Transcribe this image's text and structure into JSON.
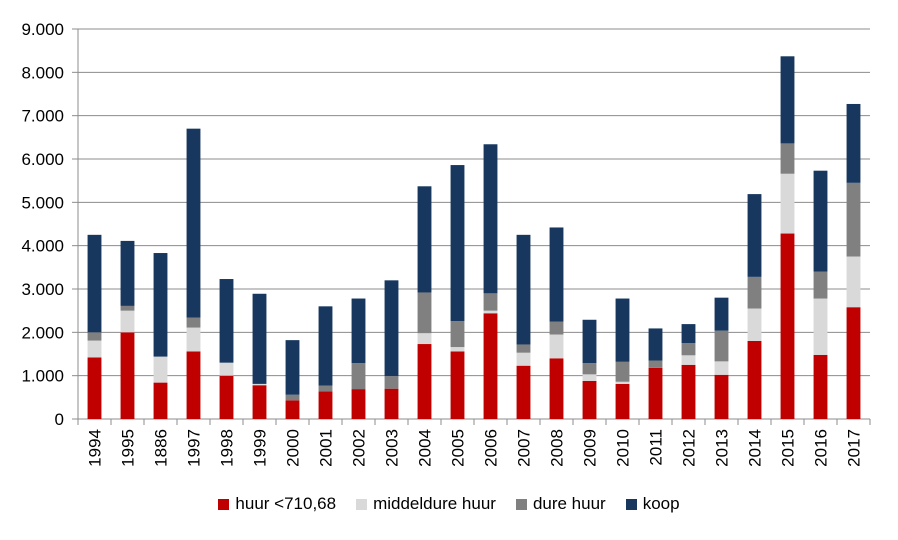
{
  "chart_data": {
    "type": "bar",
    "stacked": true,
    "categories": [
      "1994",
      "1995",
      "1886",
      "1997",
      "1998",
      "1999",
      "2000",
      "2001",
      "2002",
      "2003",
      "2004",
      "2005",
      "2006",
      "2007",
      "2008",
      "2009",
      "2010",
      "2011",
      "2012",
      "2013",
      "2014",
      "2015",
      "2016",
      "2017"
    ],
    "yticks": [
      "0",
      "1.000",
      "2.000",
      "3.000",
      "4.000",
      "5.000",
      "6.000",
      "7.000",
      "8.000",
      "9.000"
    ],
    "ylim": [
      0,
      9000
    ],
    "grid": true,
    "legend_position": "bottom",
    "series": [
      {
        "name": "huur <710,68",
        "color": "#c00000",
        "values": [
          1420,
          2000,
          840,
          1560,
          1000,
          780,
          430,
          640,
          690,
          700,
          1730,
          1560,
          2440,
          1230,
          1400,
          880,
          810,
          1180,
          1250,
          1020,
          1800,
          4280,
          1480,
          2580
        ]
      },
      {
        "name": "middeldure huur",
        "color": "#d9d9d9",
        "values": [
          390,
          500,
          600,
          550,
          300,
          30,
          0,
          0,
          0,
          0,
          250,
          100,
          60,
          300,
          550,
          150,
          50,
          0,
          220,
          310,
          750,
          1380,
          1300,
          1170
        ]
      },
      {
        "name": "dure huur",
        "color": "#808080",
        "values": [
          190,
          110,
          0,
          230,
          0,
          0,
          130,
          130,
          600,
          290,
          940,
          600,
          400,
          190,
          300,
          260,
          460,
          170,
          280,
          710,
          730,
          700,
          620,
          1700
        ]
      },
      {
        "name": "koop",
        "color": "#17375e",
        "values": [
          2250,
          1500,
          2390,
          4360,
          1930,
          2080,
          1260,
          1830,
          1490,
          2210,
          2450,
          3600,
          3440,
          2530,
          2170,
          1000,
          1460,
          740,
          440,
          760,
          1910,
          2010,
          2330,
          1820
        ]
      }
    ]
  }
}
